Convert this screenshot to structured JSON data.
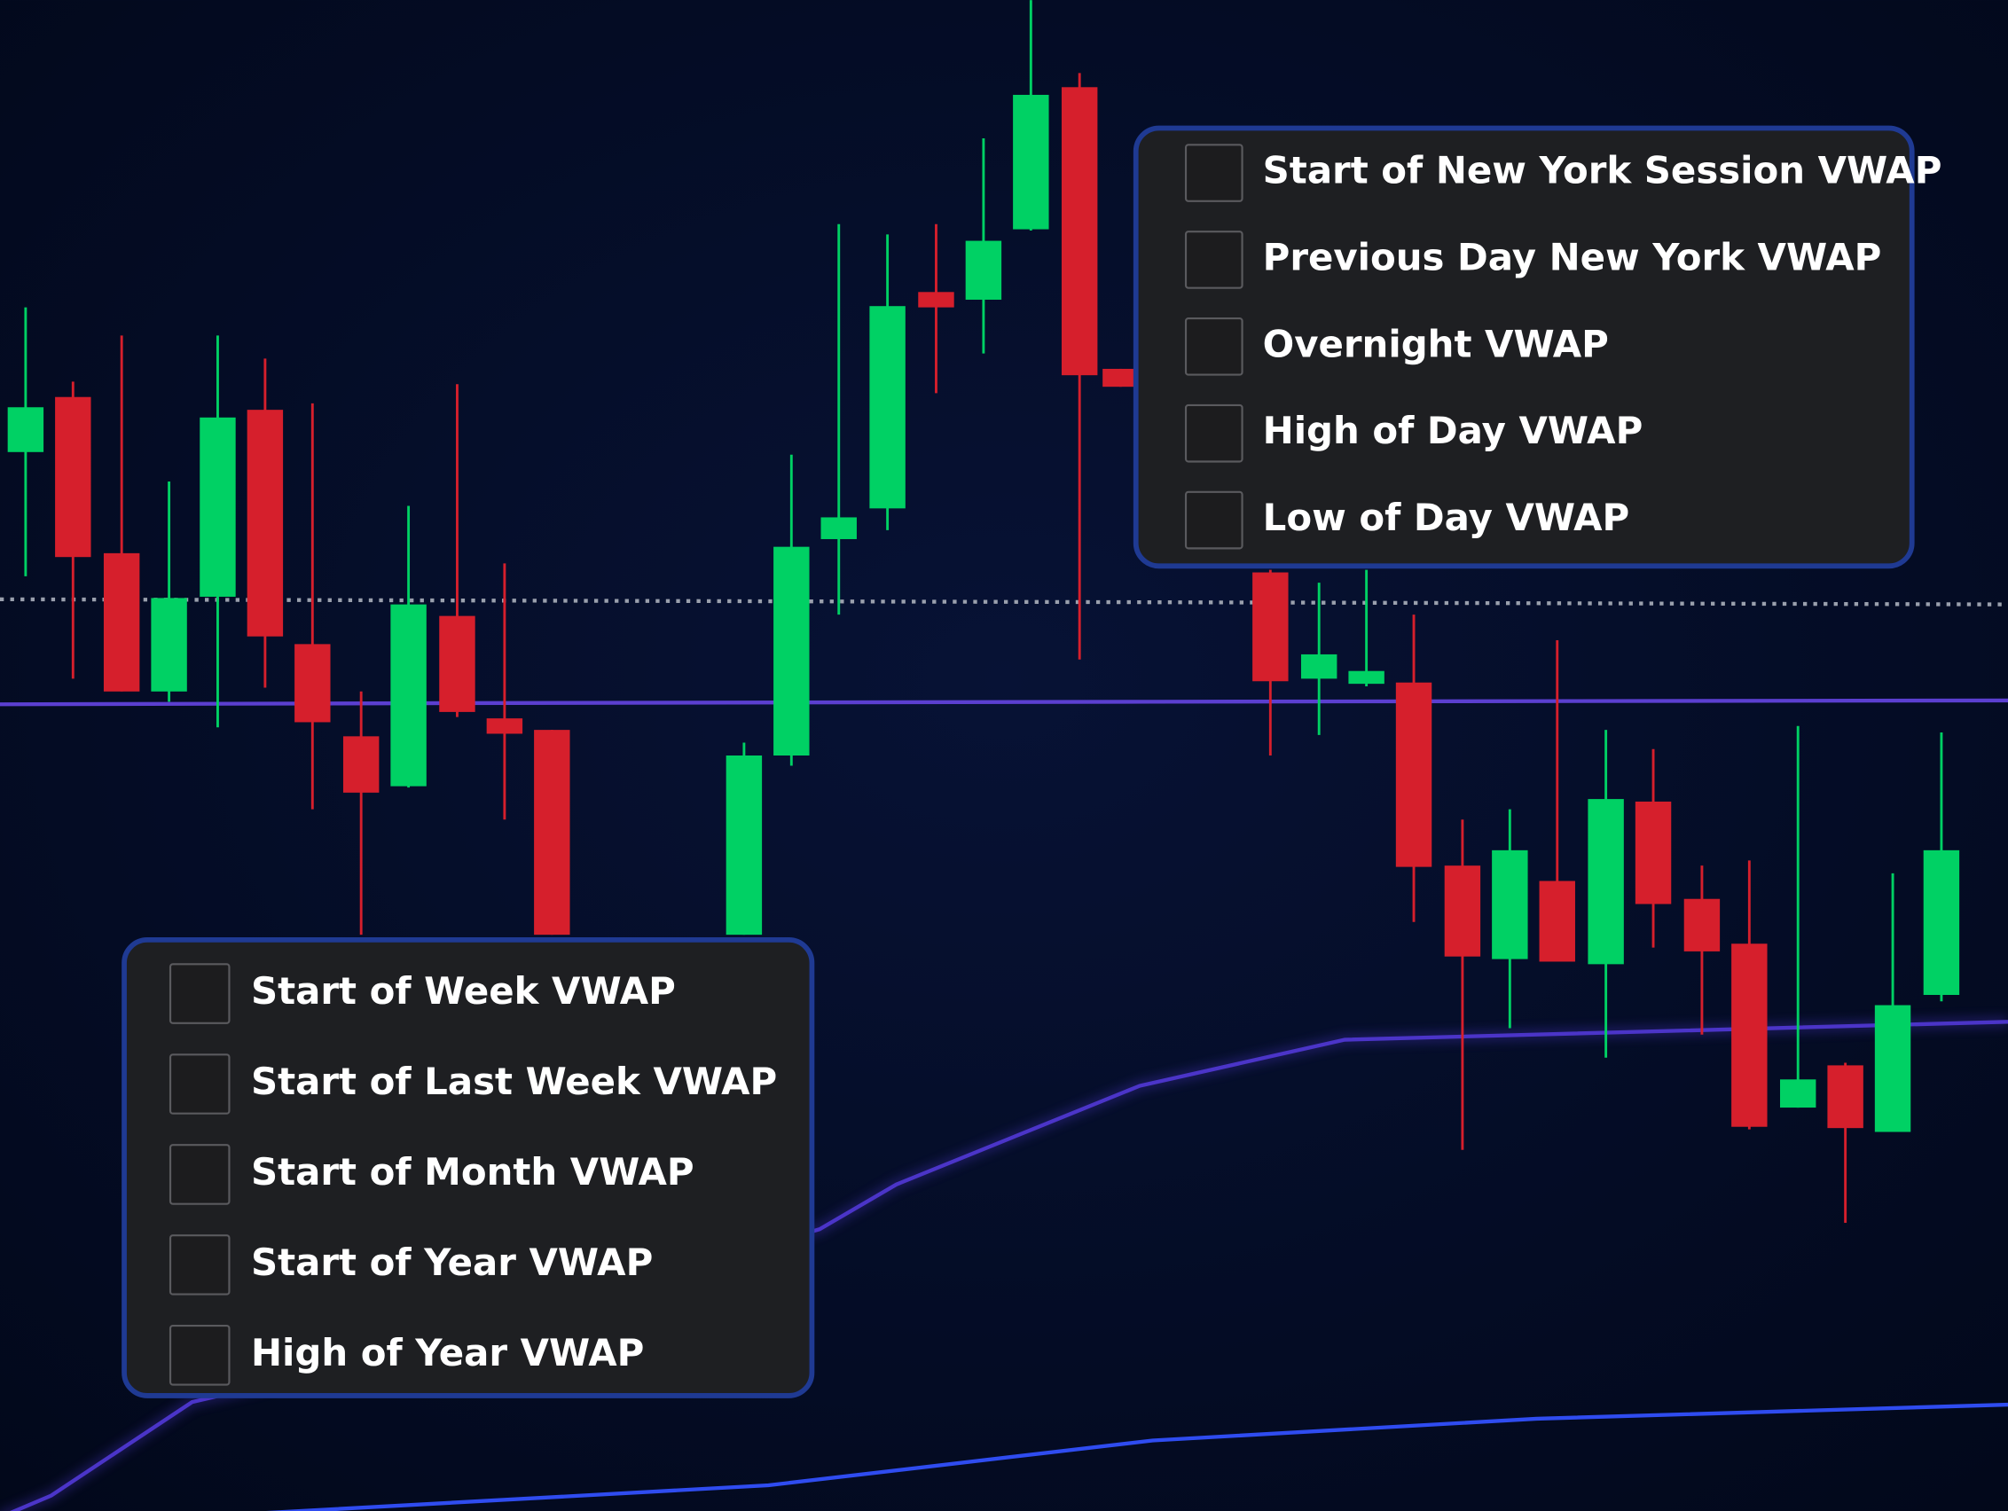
{
  "session_panel": {
    "options": [
      "Start of New York Session VWAP",
      "Previous Day New York VWAP",
      "Overnight VWAP",
      "High of Day VWAP",
      "Low of Day VWAP"
    ]
  },
  "period_panel": {
    "options": [
      "Start of Week VWAP",
      "Start of Last Week VWAP",
      "Start of Month VWAP",
      "Start of Year VWAP",
      "High of Year VWAP"
    ]
  }
}
